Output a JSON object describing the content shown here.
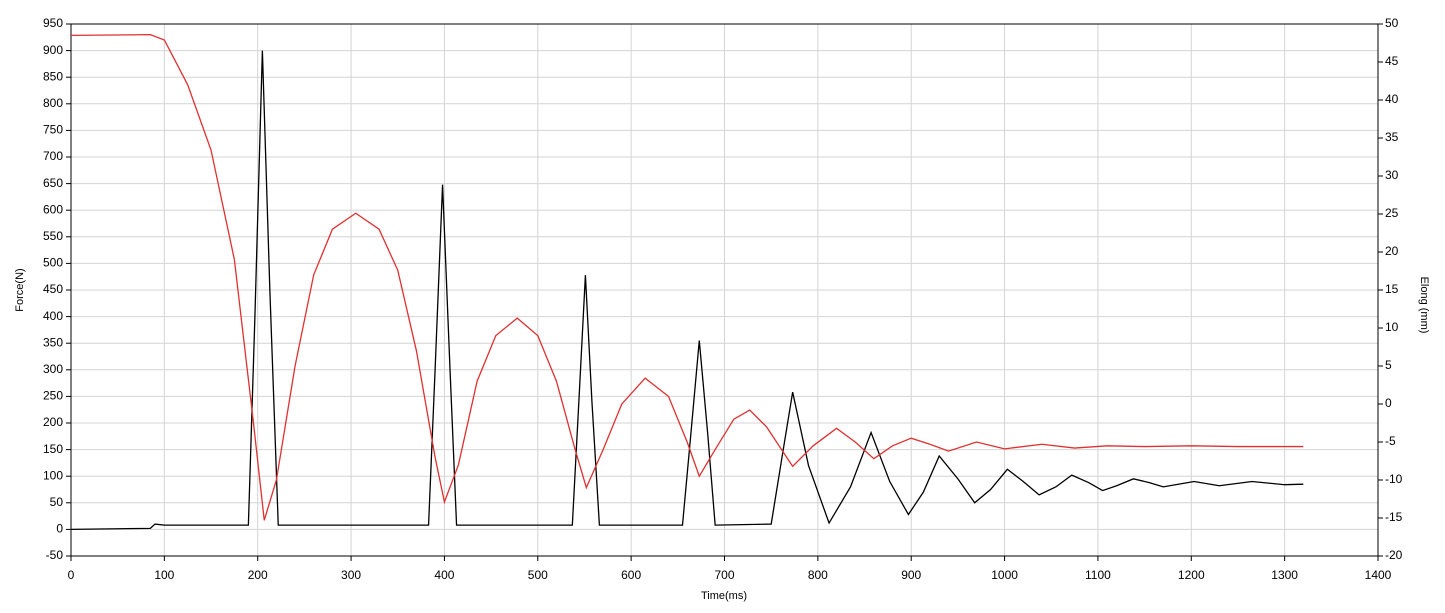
{
  "chart_data": {
    "type": "line",
    "x_label": "Time(ms)",
    "y_label": "Force(N)",
    "y2_label": "Elong (mm)",
    "xlim": [
      0,
      1400
    ],
    "xticks": [
      0,
      100,
      200,
      300,
      400,
      500,
      600,
      700,
      800,
      900,
      1000,
      1100,
      1200,
      1300,
      1400
    ],
    "ylim": [
      -50,
      950
    ],
    "yticks": [
      -50,
      0,
      50,
      100,
      150,
      200,
      250,
      300,
      350,
      400,
      450,
      500,
      550,
      600,
      650,
      700,
      750,
      800,
      850,
      900,
      950
    ],
    "y2lim": [
      -20,
      50
    ],
    "y2ticks": [
      -20,
      -15,
      -10,
      -5,
      0,
      5,
      10,
      15,
      20,
      25,
      30,
      35,
      40,
      45,
      50
    ],
    "grid": true,
    "series": [
      {
        "color": "#000000",
        "axis": "y",
        "x": [
          0,
          85,
          90,
          100,
          190,
          197,
          205,
          213,
          222,
          383,
          390,
          398,
          406,
          413,
          537,
          544,
          551,
          558,
          566,
          655,
          664,
          673,
          682,
          690,
          750,
          762,
          773,
          790,
          812,
          835,
          857,
          877,
          897,
          913,
          930,
          950,
          968,
          985,
          1003,
          1020,
          1037,
          1055,
          1072,
          1090,
          1105,
          1120,
          1138,
          1155,
          1170,
          1203,
          1230,
          1265,
          1300,
          1320
        ],
        "values": [
          0,
          2,
          10,
          8,
          8,
          400,
          900,
          450,
          8,
          8,
          300,
          648,
          300,
          8,
          8,
          240,
          478,
          240,
          8,
          8,
          180,
          355,
          180,
          8,
          10,
          140,
          258,
          120,
          12,
          80,
          182,
          90,
          28,
          70,
          138,
          95,
          50,
          75,
          113,
          90,
          65,
          80,
          102,
          88,
          73,
          82,
          95,
          88,
          80,
          90,
          82,
          90,
          84,
          85
        ]
      },
      {
        "color": "#e03030",
        "axis": "y2",
        "x": [
          0,
          85,
          100,
          125,
          150,
          175,
          195,
          207,
          220,
          240,
          260,
          280,
          305,
          330,
          350,
          370,
          390,
          400,
          415,
          435,
          455,
          478,
          500,
          520,
          540,
          552,
          570,
          590,
          615,
          640,
          660,
          673,
          690,
          710,
          727,
          745,
          773,
          795,
          820,
          840,
          860,
          880,
          900,
          920,
          940,
          970,
          1000,
          1040,
          1075,
          1110,
          1150,
          1200,
          1250,
          1320
        ],
        "values": [
          48.5,
          48.6,
          47.9,
          42,
          33.4,
          19,
          -2,
          -15.3,
          -10,
          5,
          17,
          23,
          25.1,
          23,
          17.6,
          7,
          -7,
          -12.9,
          -8,
          3,
          9,
          11.3,
          9,
          3,
          -6,
          -11,
          -6,
          0,
          3.4,
          1,
          -5,
          -9.5,
          -6,
          -2,
          -0.8,
          -3,
          -8.2,
          -5.5,
          -3.2,
          -5,
          -7.2,
          -5.5,
          -4.5,
          -5.3,
          -6.2,
          -5.0,
          -5.9,
          -5.3,
          -5.8,
          -5.5,
          -5.6,
          -5.5,
          -5.6,
          -5.6
        ]
      }
    ]
  }
}
